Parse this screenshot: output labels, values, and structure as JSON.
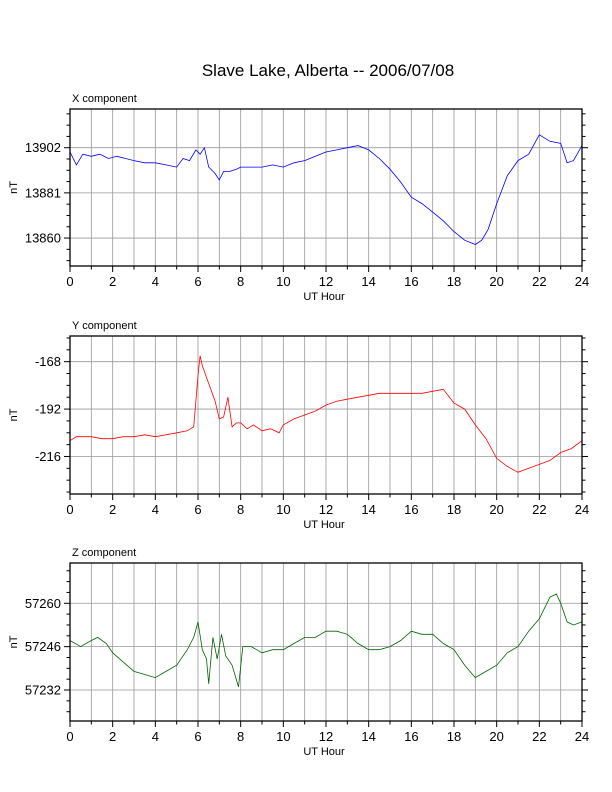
{
  "title": "Slave Lake, Alberta -- 2006/07/08",
  "chart_data": [
    {
      "type": "line",
      "panel_label": "X component",
      "xlabel": "UT Hour",
      "ylabel": "nT",
      "xlim": [
        0,
        24
      ],
      "ylim": [
        13847,
        13920
      ],
      "xticks": [
        0,
        2,
        4,
        6,
        8,
        10,
        12,
        14,
        16,
        18,
        20,
        22,
        24
      ],
      "yticks": [
        13860,
        13881,
        13902
      ],
      "grid": true,
      "color": "#0000ff",
      "x": [
        0,
        0.3,
        0.6,
        1,
        1.4,
        1.8,
        2.2,
        2.6,
        3,
        3.5,
        4,
        4.5,
        5,
        5.3,
        5.6,
        5.9,
        6.1,
        6.3,
        6.5,
        6.8,
        7.0,
        7.2,
        7.5,
        7.8,
        8,
        8.5,
        9,
        9.5,
        10,
        10.5,
        11,
        11.5,
        12,
        12.5,
        13,
        13.5,
        14,
        14.5,
        15,
        15.5,
        16,
        16.5,
        17,
        17.5,
        18,
        18.5,
        19,
        19.3,
        19.6,
        20,
        20.5,
        21,
        21.5,
        22,
        22.5,
        23,
        23.3,
        23.6,
        24
      ],
      "y": [
        13900,
        13894,
        13899,
        13898,
        13899,
        13897,
        13898,
        13897,
        13896,
        13895,
        13895,
        13894,
        13893,
        13897,
        13896,
        13901,
        13899,
        13902,
        13893,
        13890,
        13887,
        13891,
        13891,
        13892,
        13893,
        13893,
        13893,
        13894,
        13893,
        13895,
        13896,
        13898,
        13900,
        13901,
        13902,
        13903,
        13901,
        13897,
        13892,
        13886,
        13879,
        13876,
        13872,
        13868,
        13863,
        13859,
        13857,
        13859,
        13864,
        13876,
        13889,
        13896,
        13899,
        13908,
        13905,
        13904,
        13895,
        13896,
        13903
      ]
    },
    {
      "type": "line",
      "panel_label": "Y component",
      "xlabel": "UT Hour",
      "ylabel": "nT",
      "xlim": [
        0,
        24
      ],
      "ylim": [
        -235,
        -155
      ],
      "xticks": [
        0,
        2,
        4,
        6,
        8,
        10,
        12,
        14,
        16,
        18,
        20,
        22,
        24
      ],
      "yticks": [
        -216,
        -192,
        -168
      ],
      "grid": true,
      "color": "#ff0000",
      "x": [
        0,
        0.3,
        1,
        1.5,
        2,
        2.5,
        3,
        3.5,
        4,
        4.5,
        5,
        5.5,
        5.8,
        6,
        6.1,
        6.2,
        6.4,
        6.6,
        6.8,
        7,
        7.2,
        7.4,
        7.6,
        7.8,
        8,
        8.3,
        8.6,
        9,
        9.4,
        9.8,
        10,
        10.5,
        11,
        11.5,
        12,
        12.5,
        13,
        13.5,
        14,
        14.5,
        15,
        15.5,
        16,
        16.5,
        17,
        17.5,
        18,
        18.5,
        19,
        19.5,
        20,
        20.5,
        21,
        21.5,
        22,
        22.5,
        23,
        23.5,
        24
      ],
      "y": [
        -208,
        -206,
        -206,
        -207,
        -207,
        -206,
        -206,
        -205,
        -206,
        -205,
        -204,
        -203,
        -201,
        -175,
        -165,
        -170,
        -176,
        -182,
        -188,
        -197,
        -196,
        -186,
        -201,
        -199,
        -199,
        -202,
        -200,
        -203,
        -202,
        -204,
        -200,
        -197,
        -195,
        -193,
        -190,
        -188,
        -187,
        -186,
        -185,
        -184,
        -184,
        -184,
        -184,
        -184,
        -183,
        -182,
        -189,
        -192,
        -200,
        -207,
        -217,
        -221,
        -224,
        -222,
        -220,
        -218,
        -214,
        -212,
        -208
      ]
    },
    {
      "type": "line",
      "panel_label": "Z component",
      "xlabel": "UT Hour",
      "ylabel": "nT",
      "xlim": [
        0,
        24
      ],
      "ylim": [
        57222,
        57273
      ],
      "xticks": [
        0,
        2,
        4,
        6,
        8,
        10,
        12,
        14,
        16,
        18,
        20,
        22,
        24
      ],
      "yticks": [
        57232,
        57246,
        57260
      ],
      "grid": true,
      "color": "#006400",
      "x": [
        0,
        0.5,
        1,
        1.3,
        1.7,
        2,
        2.5,
        3,
        3.5,
        4,
        4.5,
        5,
        5.5,
        5.8,
        6.0,
        6.2,
        6.4,
        6.5,
        6.7,
        6.9,
        7.1,
        7.3,
        7.6,
        7.9,
        8.1,
        8.5,
        9,
        9.5,
        10,
        10.5,
        11,
        11.5,
        12,
        12.5,
        13,
        13.5,
        14,
        14.5,
        15,
        15.5,
        16,
        16.5,
        17,
        17.5,
        18,
        18.5,
        19,
        19.5,
        20,
        20.5,
        21,
        21.5,
        22,
        22.5,
        22.8,
        23,
        23.3,
        23.6,
        24
      ],
      "y": [
        57248,
        57246,
        57248,
        57249,
        57247,
        57244,
        57241,
        57238,
        57237,
        57236,
        57238,
        57240,
        57245,
        57249,
        57254,
        57245,
        57242,
        57234,
        57249,
        57242,
        57250,
        57243,
        57240,
        57233,
        57246,
        57246,
        57244,
        57245,
        57245,
        57247,
        57249,
        57249,
        57251,
        57251,
        57250,
        57247,
        57245,
        57245,
        57246,
        57248,
        57251,
        57250,
        57250,
        57247,
        57245,
        57240,
        57236,
        57238,
        57240,
        57244,
        57246,
        57251,
        57255,
        57262,
        57263,
        57260,
        57254,
        57253,
        57254
      ]
    }
  ]
}
